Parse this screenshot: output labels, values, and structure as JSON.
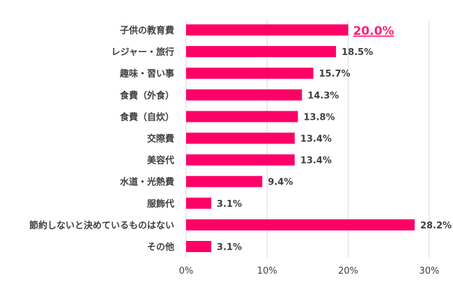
{
  "chart_data": {
    "type": "bar",
    "orientation": "horizontal",
    "categories": [
      "子供の教育費",
      "レジャー・旅行",
      "趣味・習い事",
      "食費（外食）",
      "食費（自炊）",
      "交際費",
      "美容代",
      "水道・光熱費",
      "服飾代",
      "節約しないと決めているものはない",
      "その他"
    ],
    "values": [
      20.0,
      18.5,
      15.7,
      14.3,
      13.8,
      13.4,
      13.4,
      9.4,
      3.1,
      28.2,
      3.1
    ],
    "data_labels": [
      "20.0%",
      "18.5%",
      "15.7%",
      "14.3%",
      "13.8%",
      "13.4%",
      "13.4%",
      "9.4%",
      "3.1%",
      "28.2%",
      "3.1%"
    ],
    "highlighted_index": 0,
    "xlim": [
      0,
      30
    ],
    "x_ticks": [
      "0%",
      "10%",
      "20%",
      "30%"
    ],
    "x_tick_values": [
      0,
      10,
      20,
      30
    ],
    "grid": "vertical",
    "colors": {
      "bar": "#ff0066",
      "highlight_label": "#ff1f77",
      "text": "#404040",
      "grid": "#d9d9d9"
    }
  }
}
